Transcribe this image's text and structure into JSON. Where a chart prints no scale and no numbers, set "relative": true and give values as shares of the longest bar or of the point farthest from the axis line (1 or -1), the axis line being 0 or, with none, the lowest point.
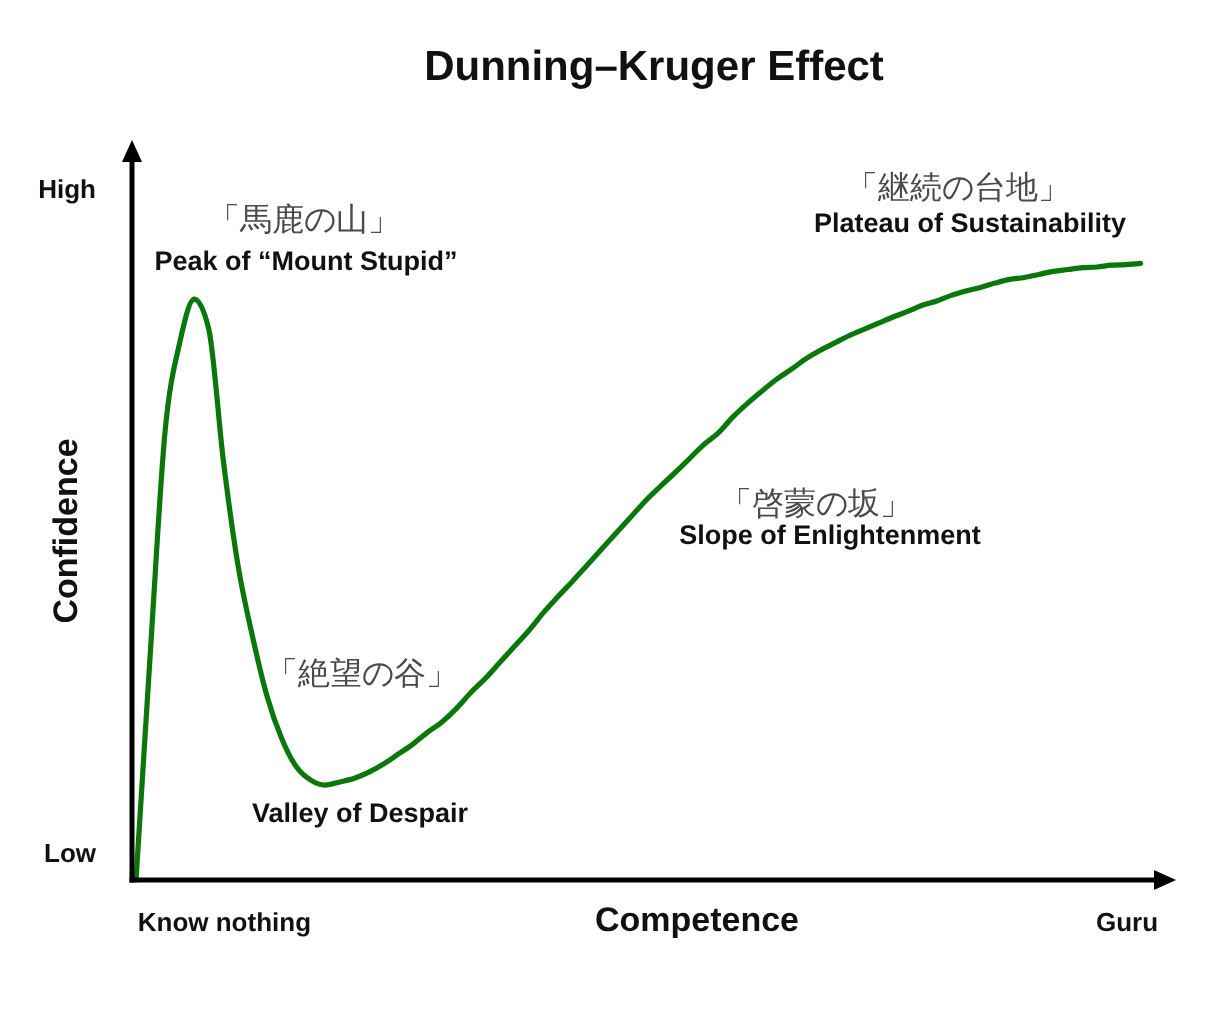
{
  "chart_data": {
    "type": "line",
    "title": "Dunning–Kruger Effect",
    "xlabel": "Competence",
    "ylabel": "Confidence",
    "relative": true,
    "categories": [
      null,
      null,
      null,
      null,
      null,
      null,
      "Know nothing",
      null,
      null,
      null,
      null,
      null,
      null,
      null,
      null,
      null,
      null,
      null,
      null,
      null,
      null,
      null,
      null,
      null,
      null,
      null,
      null,
      null,
      null,
      null,
      null,
      null,
      null,
      null,
      null,
      null,
      null,
      null,
      null,
      null,
      null,
      null,
      null,
      null,
      null,
      null,
      null,
      null,
      null,
      null,
      null,
      null,
      null,
      null,
      null,
      null,
      null,
      null,
      null,
      null,
      null,
      null,
      null,
      null,
      null,
      null,
      null,
      null,
      "Guru",
      null
    ],
    "series": [
      {
        "color": "#0a770a",
        "values": [
          0,
          0.375,
          0.728,
          0.871,
          0.942,
          0.893,
          0.68,
          0.511,
          0.395,
          0.298,
          0.23,
          0.184,
          0.162,
          0.154,
          0.159,
          0.165,
          0.175,
          0.188,
          0.204,
          0.22,
          0.239,
          0.256,
          0.278,
          0.304,
          0.327,
          0.353,
          0.379,
          0.405,
          0.434,
          0.46,
          0.485,
          0.511,
          0.537,
          0.563,
          0.589,
          0.615,
          0.638,
          0.66,
          0.683,
          0.706,
          0.725,
          0.751,
          0.773,
          0.793,
          0.812,
          0.828,
          0.845,
          0.859,
          0.871,
          0.883,
          0.893,
          0.903,
          0.913,
          0.922,
          0.932,
          0.939,
          0.948,
          0.955,
          0.961,
          0.968,
          0.974,
          0.977,
          0.982,
          0.987,
          0.99,
          0.993,
          0.994,
          0.997,
          0.998,
          1
        ]
      }
    ],
    "annotations": [
      "High",
      "Low",
      "「馬鹿の山」",
      "Peak of “Mount Stupid”",
      "「絶望の谷」",
      "Valley of Despair",
      "「啓蒙の坂」",
      "Slope of Enlightenment",
      "「継続の台地」",
      "Plateau of Sustainability"
    ]
  }
}
